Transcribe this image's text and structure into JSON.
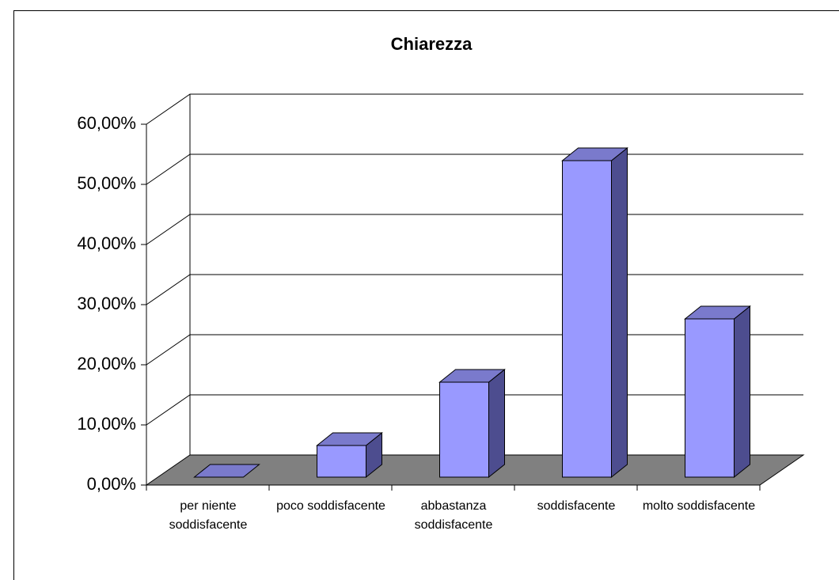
{
  "chart_data": {
    "type": "bar3d",
    "title": "Chiarezza",
    "categories": [
      "per niente soddisfacente",
      "poco soddisfacente",
      "abbastanza soddisfacente",
      "soddisfacente",
      "molto soddisfacente"
    ],
    "values": [
      0,
      5.26,
      15.79,
      52.63,
      26.32
    ],
    "color": "#9999ff",
    "ylim": [
      0,
      60
    ],
    "yticks": [
      {
        "value": 0,
        "label": "0,00%"
      },
      {
        "value": 10,
        "label": "10,00%"
      },
      {
        "value": 20,
        "label": "20,00%"
      },
      {
        "value": 30,
        "label": "30,00%"
      },
      {
        "value": 40,
        "label": "40,00%"
      },
      {
        "value": 50,
        "label": "50,00%"
      },
      {
        "value": 60,
        "label": "60,00%"
      }
    ],
    "grid": true
  }
}
